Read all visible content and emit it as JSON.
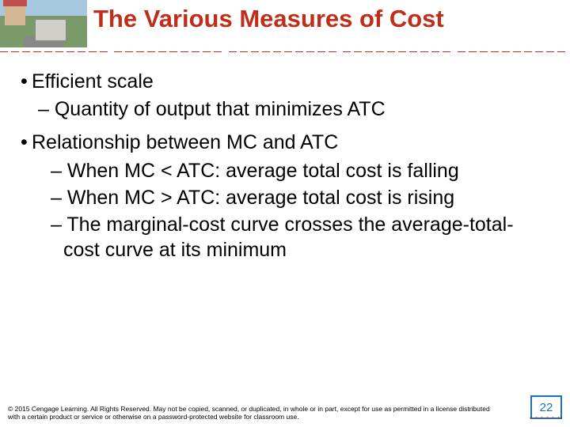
{
  "title": "The Various Measures of Cost",
  "bullets": {
    "b1": "Efficient scale",
    "b1_sub": "Quantity of output that minimizes ATC",
    "b2": "Relationship between MC and ATC",
    "b2_sub1": "When MC < ATC: average total cost is falling",
    "b2_sub2": "When MC > ATC: average total cost is rising",
    "b2_sub3": "The marginal-cost curve crosses the average-total-cost curve at its minimum"
  },
  "footer": "© 2015 Cengage Learning. All Rights Reserved. May not be copied, scanned, or duplicated, in whole or in part, except for use as permitted in a license distributed with a certain product or service or otherwise on a password-protected website for classroom use.",
  "page_number": "22",
  "colors": {
    "title": "#be2e1b",
    "rule": "#be2e1b",
    "box_border": "#1f6fb5",
    "page_num": "#1f6fb5",
    "background": "#ffffff"
  }
}
